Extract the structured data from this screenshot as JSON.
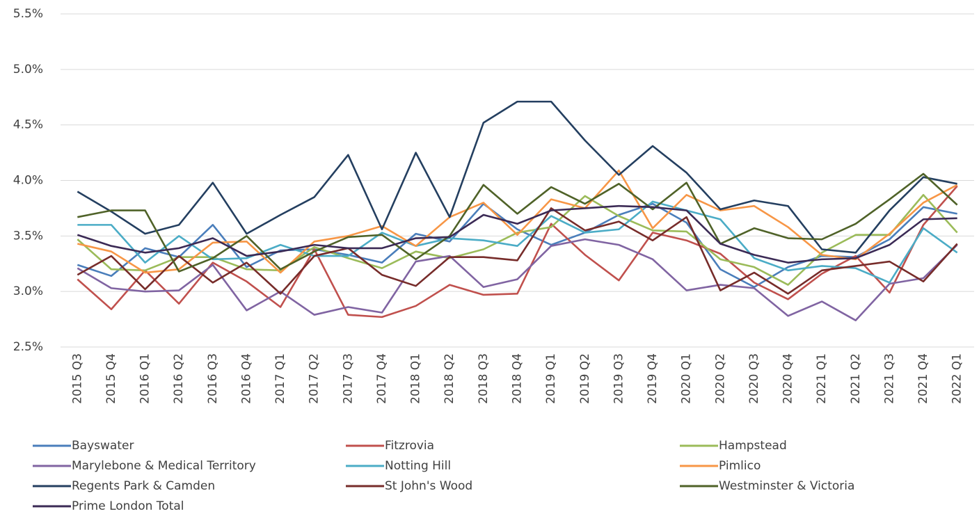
{
  "chart_data": {
    "type": "line",
    "categories": [
      "2015 Q3",
      "2015 Q4",
      "2016 Q1",
      "2016 Q2",
      "2016 Q3",
      "2016 Q4",
      "2017 Q1",
      "2017 Q2",
      "2017 Q3",
      "2017 Q4",
      "2018 Q1",
      "2018 Q2",
      "2018 Q3",
      "2018 Q4",
      "2019 Q1",
      "2019 Q2",
      "2019 Q3",
      "2019 Q4",
      "2020 Q1",
      "2020 Q2",
      "2020 Q3",
      "2020 Q4",
      "2021 Q1",
      "2021 Q2",
      "2021 Q3",
      "2021 Q4",
      "2022 Q1"
    ],
    "ylim": [
      2.5,
      5.5
    ],
    "yticks": [
      {
        "value": 2.5,
        "label": "2.5%"
      },
      {
        "value": 3.0,
        "label": "3.0%"
      },
      {
        "value": 3.5,
        "label": "3.5%"
      },
      {
        "value": 4.0,
        "label": "4.0%"
      },
      {
        "value": 4.5,
        "label": "4.5%"
      },
      {
        "value": 5.0,
        "label": "5.0%"
      },
      {
        "value": 5.5,
        "label": "5.5%"
      }
    ],
    "grid": true,
    "legend": "bottom",
    "series": [
      {
        "name": "Bayswater",
        "color": "#4a7ebb",
        "values": [
          3.24,
          3.14,
          3.39,
          3.31,
          3.6,
          3.22,
          3.37,
          3.38,
          3.33,
          3.26,
          3.52,
          3.45,
          3.79,
          3.56,
          3.42,
          3.53,
          3.69,
          3.79,
          3.62,
          3.2,
          3.04,
          3.22,
          3.32,
          3.31,
          3.47,
          3.76,
          3.7
        ]
      },
      {
        "name": "Fitzrovia",
        "color": "#c0504d",
        "values": [
          3.11,
          2.84,
          3.19,
          2.89,
          3.26,
          3.09,
          2.86,
          3.38,
          2.79,
          2.77,
          2.87,
          3.06,
          2.97,
          2.98,
          3.61,
          3.33,
          3.1,
          3.53,
          3.46,
          3.34,
          3.08,
          2.93,
          3.16,
          3.32,
          2.99,
          3.6,
          3.95
        ]
      },
      {
        "name": "Hampstead",
        "color": "#9bbb59",
        "values": [
          3.47,
          3.2,
          3.19,
          3.31,
          3.31,
          3.2,
          3.19,
          3.4,
          3.3,
          3.21,
          3.36,
          3.3,
          3.38,
          3.53,
          3.58,
          3.86,
          3.68,
          3.55,
          3.54,
          3.29,
          3.22,
          3.06,
          3.35,
          3.51,
          3.51,
          3.87,
          3.53
        ]
      },
      {
        "name": "Marylebone & Medical Territory",
        "color": "#8064a2",
        "values": [
          3.21,
          3.03,
          3.0,
          3.01,
          3.24,
          2.83,
          3.0,
          2.79,
          2.86,
          2.81,
          3.27,
          3.32,
          3.04,
          3.11,
          3.41,
          3.47,
          3.42,
          3.29,
          3.01,
          3.06,
          3.03,
          2.78,
          2.91,
          2.74,
          3.07,
          3.12,
          3.42
        ]
      },
      {
        "name": "Notting Hill",
        "color": "#4bacc6",
        "values": [
          3.6,
          3.6,
          3.26,
          3.5,
          3.29,
          3.3,
          3.42,
          3.32,
          3.32,
          3.53,
          3.41,
          3.48,
          3.46,
          3.41,
          3.68,
          3.53,
          3.56,
          3.81,
          3.73,
          3.65,
          3.3,
          3.19,
          3.23,
          3.21,
          3.08,
          3.57,
          3.35
        ]
      },
      {
        "name": "Pimlico",
        "color": "#f79646",
        "values": [
          3.43,
          3.36,
          3.17,
          3.2,
          3.44,
          3.45,
          3.17,
          3.45,
          3.5,
          3.59,
          3.41,
          3.67,
          3.8,
          3.51,
          3.83,
          3.75,
          4.09,
          3.57,
          3.87,
          3.73,
          3.77,
          3.58,
          3.33,
          3.29,
          3.52,
          3.8,
          3.96
        ]
      },
      {
        "name": "Regents Park & Camden",
        "color": "#243f60",
        "values": [
          3.9,
          3.72,
          3.52,
          3.6,
          3.98,
          3.52,
          3.69,
          3.85,
          4.23,
          3.56,
          4.25,
          3.67,
          4.52,
          4.71,
          4.71,
          4.36,
          4.05,
          4.31,
          4.07,
          3.74,
          3.82,
          3.77,
          3.38,
          3.35,
          3.73,
          4.03,
          3.97
        ]
      },
      {
        "name": "St John's Wood",
        "color": "#772c2a",
        "values": [
          3.15,
          3.32,
          3.02,
          3.32,
          3.08,
          3.26,
          2.98,
          3.32,
          3.39,
          3.15,
          3.05,
          3.31,
          3.31,
          3.28,
          3.75,
          3.55,
          3.63,
          3.46,
          3.67,
          3.01,
          3.17,
          2.98,
          3.19,
          3.23,
          3.27,
          3.09,
          3.43
        ]
      },
      {
        "name": "Westminster & Victoria",
        "color": "#4f6228",
        "values": [
          3.67,
          3.73,
          3.73,
          3.18,
          3.3,
          3.5,
          3.2,
          3.36,
          3.49,
          3.51,
          3.29,
          3.5,
          3.96,
          3.7,
          3.94,
          3.79,
          3.97,
          3.74,
          3.98,
          3.43,
          3.57,
          3.48,
          3.47,
          3.61,
          3.83,
          4.06,
          3.78
        ]
      },
      {
        "name": "Prime London Total",
        "color": "#3b2a55",
        "values": [
          3.51,
          3.41,
          3.35,
          3.39,
          3.48,
          3.32,
          3.36,
          3.42,
          3.39,
          3.39,
          3.48,
          3.49,
          3.69,
          3.61,
          3.73,
          3.75,
          3.77,
          3.76,
          3.73,
          3.43,
          3.33,
          3.26,
          3.29,
          3.3,
          3.42,
          3.65,
          3.66
        ]
      }
    ]
  }
}
